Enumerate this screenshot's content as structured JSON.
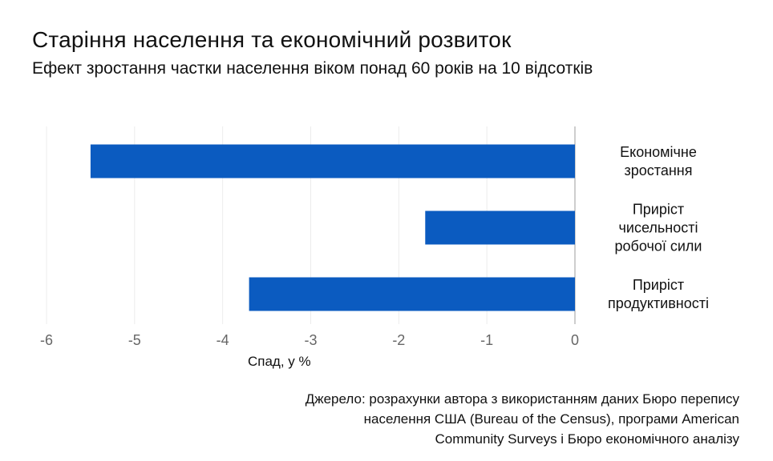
{
  "chart_data": {
    "type": "bar",
    "orientation": "horizontal",
    "title": "Старіння населення та економічний розвиток",
    "subtitle": "Ефект зростання частки населення віком понад 60 років на 10 відсотків",
    "categories": [
      "Економічне зростання",
      "Приріст чисельності робочої сили",
      "Приріст продуктивності"
    ],
    "category_lines": [
      [
        "Економічне",
        "зростання"
      ],
      [
        "Приріст",
        "чисельності",
        "робочої сили"
      ],
      [
        "Приріст",
        "продуктивності"
      ]
    ],
    "values": [
      -5.5,
      -1.7,
      -3.7
    ],
    "xlim": [
      -6,
      0
    ],
    "xticks": [
      "-6",
      "-5",
      "-4",
      "-3",
      "-2",
      "-1",
      "0"
    ],
    "xlabel": "Спад, у %",
    "ylabel": "",
    "grid": true,
    "legend": "none",
    "bar_color": "#0b5bc0",
    "source": "Джерело: розрахунки автора з використанням даних Бюро перепису\nнаселення США (Bureau of the Census), програми American\nCommunity Surveys і Бюро економічного аналізу"
  }
}
